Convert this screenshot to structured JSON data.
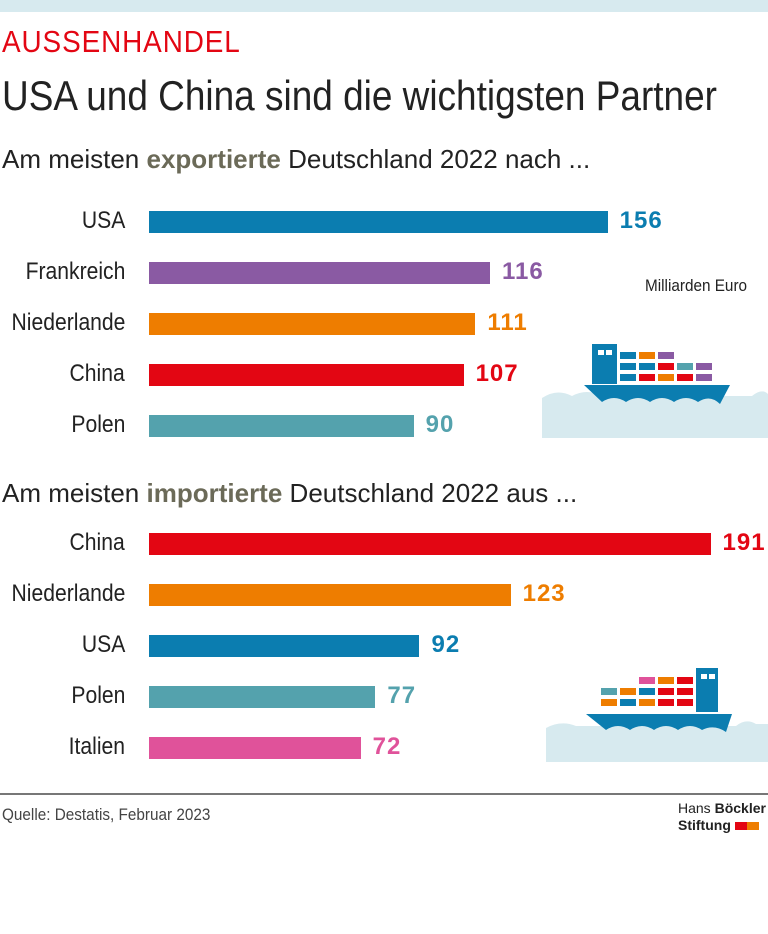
{
  "kicker": "AUSSENHANDEL",
  "headline": "USA und China sind die wichtigsten Partner",
  "unit": "Milliarden Euro",
  "source": "Quelle: Destatis, Februar 2023",
  "logo": {
    "line1a": "Hans",
    "line1b": "Böckler",
    "line2": "Stiftung"
  },
  "colors": {
    "blue": "#0b7db0",
    "purple": "#8a5aa3",
    "orange": "#ee7d00",
    "red": "#e30613",
    "teal": "#54a2ad",
    "pink": "#e0529a",
    "water": "#d7eaef"
  },
  "chart_data": [
    {
      "type": "bar",
      "orientation": "horizontal",
      "title_pre": "Am meisten ",
      "title_bold": "exportierte",
      "title_post": " Deutschland 2022 nach ...",
      "categories": [
        "USA",
        "Frankreich",
        "Niederlande",
        "China",
        "Polen"
      ],
      "values": [
        156,
        116,
        111,
        107,
        90
      ],
      "bar_colors": [
        "#0b7db0",
        "#8a5aa3",
        "#ee7d00",
        "#e30613",
        "#54a2ad"
      ]
    },
    {
      "type": "bar",
      "orientation": "horizontal",
      "title_pre": "Am meisten ",
      "title_bold": "importierte",
      "title_post": " Deutschland 2022 aus ...",
      "categories": [
        "China",
        "Niederlande",
        "USA",
        "Polen",
        "Italien"
      ],
      "values": [
        191,
        123,
        92,
        77,
        72
      ],
      "bar_colors": [
        "#e30613",
        "#ee7d00",
        "#0b7db0",
        "#54a2ad",
        "#e0529a"
      ]
    }
  ]
}
